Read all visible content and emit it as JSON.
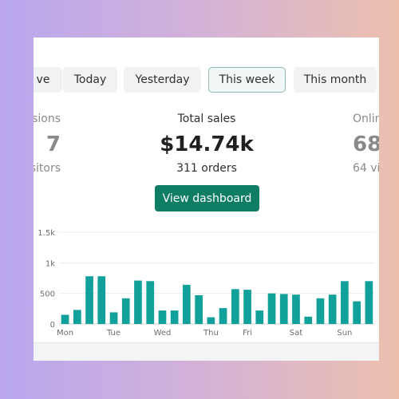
{
  "tabs": [
    {
      "label": "ve",
      "active": false
    },
    {
      "label": "Today",
      "active": false
    },
    {
      "label": "Yesterday",
      "active": false
    },
    {
      "label": "This week",
      "active": true
    },
    {
      "label": "This month",
      "active": false
    }
  ],
  "metrics": {
    "left": {
      "label": "sions",
      "value": "7",
      "sub": "sitors"
    },
    "center": {
      "label": "Total sales",
      "value": "$14.74k",
      "sub": "311 orders"
    },
    "right": {
      "label": "Onlin",
      "value": "68",
      "sub": "64 vi"
    }
  },
  "view_dashboard_label": "View dashboard",
  "colors": {
    "accent": "#0e7d63",
    "bar": "#12a19a"
  },
  "chart_data": {
    "type": "bar",
    "x_tick_labels": [
      "Mon",
      "Tue",
      "Wed",
      "Thu",
      "Fri",
      "Sat",
      "Sun"
    ],
    "y_tick_labels": [
      "1.5k",
      "1k",
      "500",
      "0"
    ],
    "ylim": [
      0,
      1500
    ],
    "values": [
      150,
      230,
      780,
      780,
      190,
      420,
      710,
      700,
      220,
      220,
      640,
      470,
      110,
      260,
      570,
      560,
      220,
      500,
      490,
      480,
      120,
      420,
      480,
      700,
      370,
      700
    ],
    "grid": true
  }
}
